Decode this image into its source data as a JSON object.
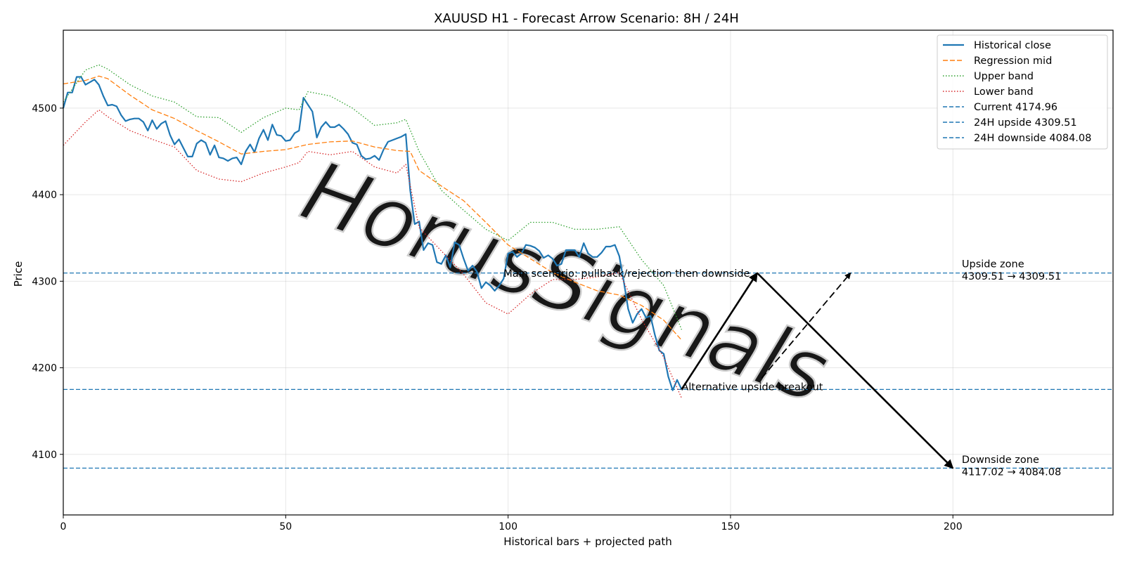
{
  "chart_data": {
    "type": "line",
    "title": "XAUUSD H1 - Forecast Arrow Scenario: 8H / 24H",
    "xlabel": "Historical bars + projected path",
    "ylabel": "Price",
    "xlim": [
      0,
      236
    ],
    "ylim": [
      4030,
      4590
    ],
    "xticks": [
      0,
      50,
      100,
      150,
      200
    ],
    "yticks": [
      4100,
      4200,
      4300,
      4400,
      4500
    ],
    "grid": true,
    "legend_position": "top-right",
    "watermark": "HorusSignals",
    "series": [
      {
        "name": "Historical close",
        "style": "solid",
        "color": "#1f77b4",
        "x": [
          0,
          1,
          2,
          3,
          4,
          5,
          6,
          7,
          8,
          9,
          10,
          11,
          12,
          13,
          14,
          15,
          16,
          17,
          18,
          19,
          20,
          21,
          22,
          23,
          24,
          25,
          26,
          27,
          28,
          29,
          30,
          31,
          32,
          33,
          34,
          35,
          36,
          37,
          38,
          39,
          40,
          41,
          42,
          43,
          44,
          45,
          46,
          47,
          48,
          49,
          50,
          51,
          52,
          53,
          54,
          55,
          56,
          57,
          58,
          59,
          60,
          61,
          62,
          63,
          64,
          65,
          66,
          67,
          68,
          69,
          70,
          71,
          72,
          73,
          74,
          75,
          76,
          77,
          78,
          79,
          80,
          81,
          82,
          83,
          84,
          85,
          86,
          87,
          88,
          89,
          90,
          91,
          92,
          93,
          94,
          95,
          96,
          97,
          98,
          99,
          100,
          101,
          102,
          103,
          104,
          105,
          106,
          107,
          108,
          109,
          110,
          111,
          112,
          113,
          114,
          115,
          116,
          117,
          118,
          119,
          120,
          121,
          122,
          123,
          124,
          125,
          126,
          127,
          128,
          129,
          130,
          131,
          132,
          133,
          134,
          135,
          136,
          137,
          138,
          139
        ],
        "values": [
          4500,
          4518,
          4518,
          4536,
          4536,
          4527,
          4530,
          4533,
          4527,
          4514,
          4503,
          4504,
          4502,
          4492,
          4485,
          4487,
          4488,
          4488,
          4484,
          4474,
          4486,
          4476,
          4482,
          4485,
          4469,
          4458,
          4464,
          4454,
          4444,
          4444,
          4459,
          4463,
          4460,
          4446,
          4457,
          4443,
          4442,
          4439,
          4442,
          4443,
          4435,
          4450,
          4458,
          4449,
          4465,
          4475,
          4463,
          4481,
          4469,
          4468,
          4462,
          4463,
          4471,
          4474,
          4512,
          4504,
          4496,
          4466,
          4478,
          4484,
          4478,
          4478,
          4481,
          4476,
          4470,
          4460,
          4458,
          4445,
          4441,
          4442,
          4445,
          4440,
          4452,
          4461,
          4463,
          4465,
          4467,
          4470,
          4405,
          4366,
          4369,
          4336,
          4344,
          4342,
          4322,
          4320,
          4330,
          4316,
          4345,
          4342,
          4326,
          4312,
          4318,
          4311,
          4292,
          4299,
          4295,
          4289,
          4295,
          4303,
          4332,
          4334,
          4328,
          4332,
          4342,
          4341,
          4339,
          4335,
          4327,
          4330,
          4326,
          4318,
          4320,
          4336,
          4336,
          4336,
          4328,
          4344,
          4332,
          4328,
          4328,
          4333,
          4340,
          4340,
          4342,
          4329,
          4300,
          4268,
          4252,
          4262,
          4268,
          4258,
          4260,
          4238,
          4220,
          4216,
          4190,
          4174,
          4186,
          4175
        ]
      },
      {
        "name": "Regression mid",
        "style": "dashed",
        "color": "#ff7f0e",
        "x": [
          0,
          5,
          8,
          10,
          15,
          20,
          25,
          30,
          35,
          40,
          45,
          50,
          55,
          60,
          65,
          70,
          75,
          78,
          80,
          85,
          90,
          95,
          100,
          105,
          110,
          115,
          120,
          125,
          130,
          135,
          139
        ],
        "values": [
          4528,
          4532,
          4537,
          4534,
          4515,
          4498,
          4488,
          4474,
          4461,
          4447,
          4450,
          4452,
          4458,
          4461,
          4462,
          4455,
          4451,
          4450,
          4428,
          4410,
          4393,
          4368,
          4342,
          4326,
          4310,
          4299,
          4289,
          4284,
          4272,
          4255,
          4232
        ]
      },
      {
        "name": "Upper band",
        "style": "dotted",
        "color": "#2ca02c",
        "x": [
          0,
          5,
          8,
          10,
          15,
          20,
          25,
          30,
          35,
          40,
          45,
          50,
          53,
          55,
          60,
          65,
          70,
          75,
          77,
          80,
          85,
          90,
          95,
          100,
          105,
          110,
          115,
          120,
          125,
          130,
          135,
          139
        ],
        "values": [
          4507,
          4544,
          4550,
          4545,
          4527,
          4514,
          4507,
          4490,
          4489,
          4472,
          4489,
          4500,
          4498,
          4519,
          4514,
          4500,
          4480,
          4483,
          4487,
          4450,
          4405,
          4382,
          4360,
          4347,
          4368,
          4368,
          4360,
          4360,
          4363,
          4325,
          4295,
          4244
        ]
      },
      {
        "name": "Lower band",
        "style": "dotted",
        "color": "#d62728",
        "x": [
          0,
          5,
          8,
          10,
          15,
          20,
          25,
          30,
          35,
          40,
          45,
          50,
          53,
          55,
          60,
          65,
          70,
          75,
          77,
          80,
          85,
          90,
          95,
          100,
          105,
          110,
          115,
          120,
          125,
          130,
          135,
          139
        ],
        "values": [
          4457,
          4484,
          4498,
          4490,
          4474,
          4464,
          4455,
          4428,
          4418,
          4415,
          4425,
          4432,
          4437,
          4450,
          4446,
          4450,
          4432,
          4425,
          4435,
          4362,
          4335,
          4308,
          4275,
          4262,
          4285,
          4302,
          4302,
          4305,
          4310,
          4256,
          4212,
          4165
        ]
      }
    ],
    "reference_lines": [
      {
        "name": "Current 4174.96",
        "value": 4174.96,
        "color": "#1f77b4"
      },
      {
        "name": "24H upside 4309.51",
        "value": 4309.51,
        "color": "#1f77b4"
      },
      {
        "name": "24H downside 4084.08",
        "value": 4084.08,
        "color": "#1f77b4"
      }
    ],
    "arrows": [
      {
        "label": "main-leg-up",
        "from": [
          139,
          4175
        ],
        "to": [
          156,
          4309.5
        ],
        "style": "solid"
      },
      {
        "label": "main-leg-down",
        "from": [
          156,
          4309.5
        ],
        "to": [
          200,
          4084
        ],
        "style": "solid"
      },
      {
        "label": "alternative-breakout",
        "from": [
          157,
          4188
        ],
        "to": [
          177,
          4309.5
        ],
        "style": "dashed"
      }
    ],
    "annotations": [
      {
        "text": "Main scenario: pullback/rejection then downside",
        "x": 99,
        "y": 4305
      },
      {
        "text": "Alternative upside breakout",
        "x": 139,
        "y": 4174
      },
      {
        "text": "Upside zone",
        "x": 202,
        "y": 4316
      },
      {
        "text": "4309.51 → 4309.51",
        "x": 202,
        "y": 4302
      },
      {
        "text": "Downside zone",
        "x": 202,
        "y": 4090
      },
      {
        "text": "4117.02 → 4084.08",
        "x": 202,
        "y": 4076
      }
    ]
  }
}
